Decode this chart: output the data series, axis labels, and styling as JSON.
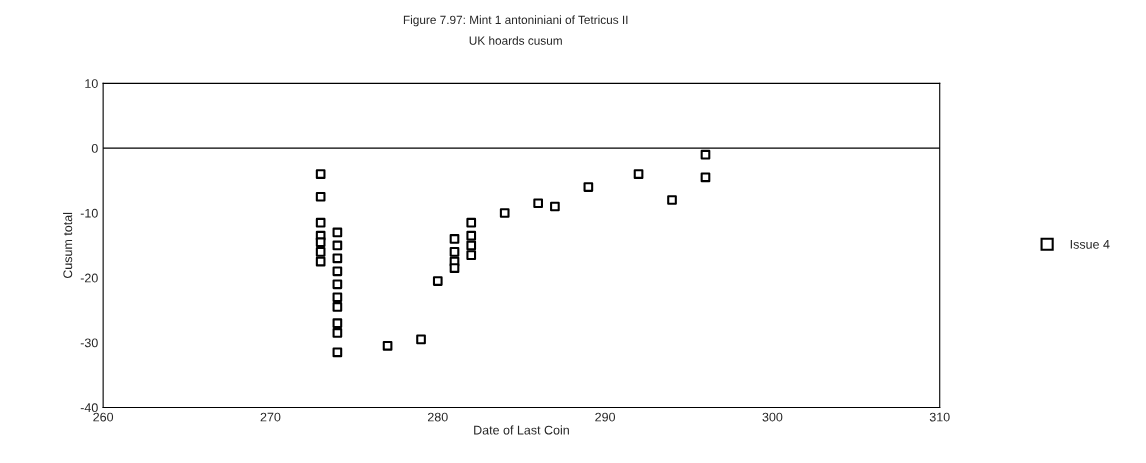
{
  "chart_data": {
    "type": "scatter",
    "title": "Figure 7.97: Mint 1 antoniniani of Tetricus II",
    "subtitle": "UK hoards cusum",
    "xlabel": "Date of Last Coin",
    "ylabel": "Cusum total",
    "series": [
      {
        "name": "Issue 4",
        "color": "#000000",
        "x": [
          273,
          273,
          273,
          273,
          273,
          273,
          273,
          274,
          274,
          274,
          274,
          274,
          274,
          274,
          274,
          274,
          274,
          277,
          279,
          280,
          281,
          281,
          281,
          281,
          282,
          282,
          282,
          282,
          284,
          286,
          287,
          289,
          292,
          294,
          296,
          296
        ],
        "values": [
          -4,
          -7.5,
          -11.5,
          -13.5,
          -14.5,
          -16,
          -17.5,
          -13,
          -15,
          -17,
          -19,
          -21,
          -23,
          -24.5,
          -27,
          -28.5,
          -31.5,
          -30.5,
          -29.5,
          -20.5,
          -14,
          -16,
          -17.5,
          -18.5,
          -11.5,
          -13.5,
          -15,
          -16.5,
          -10,
          -8.5,
          -9,
          -6,
          -4,
          -8,
          -1,
          -4.5
        ]
      }
    ],
    "xlim": [
      260,
      310
    ],
    "xticks": [
      260,
      270,
      280,
      290,
      300,
      310
    ],
    "ylim": [
      -40,
      10
    ],
    "yticks": [
      -40,
      -30,
      -20,
      -10,
      0,
      10
    ],
    "ref_lines": [
      {
        "axis": "y",
        "value": 0,
        "color": "#000000"
      }
    ],
    "marker": "square",
    "legend": "right",
    "grid": false
  }
}
